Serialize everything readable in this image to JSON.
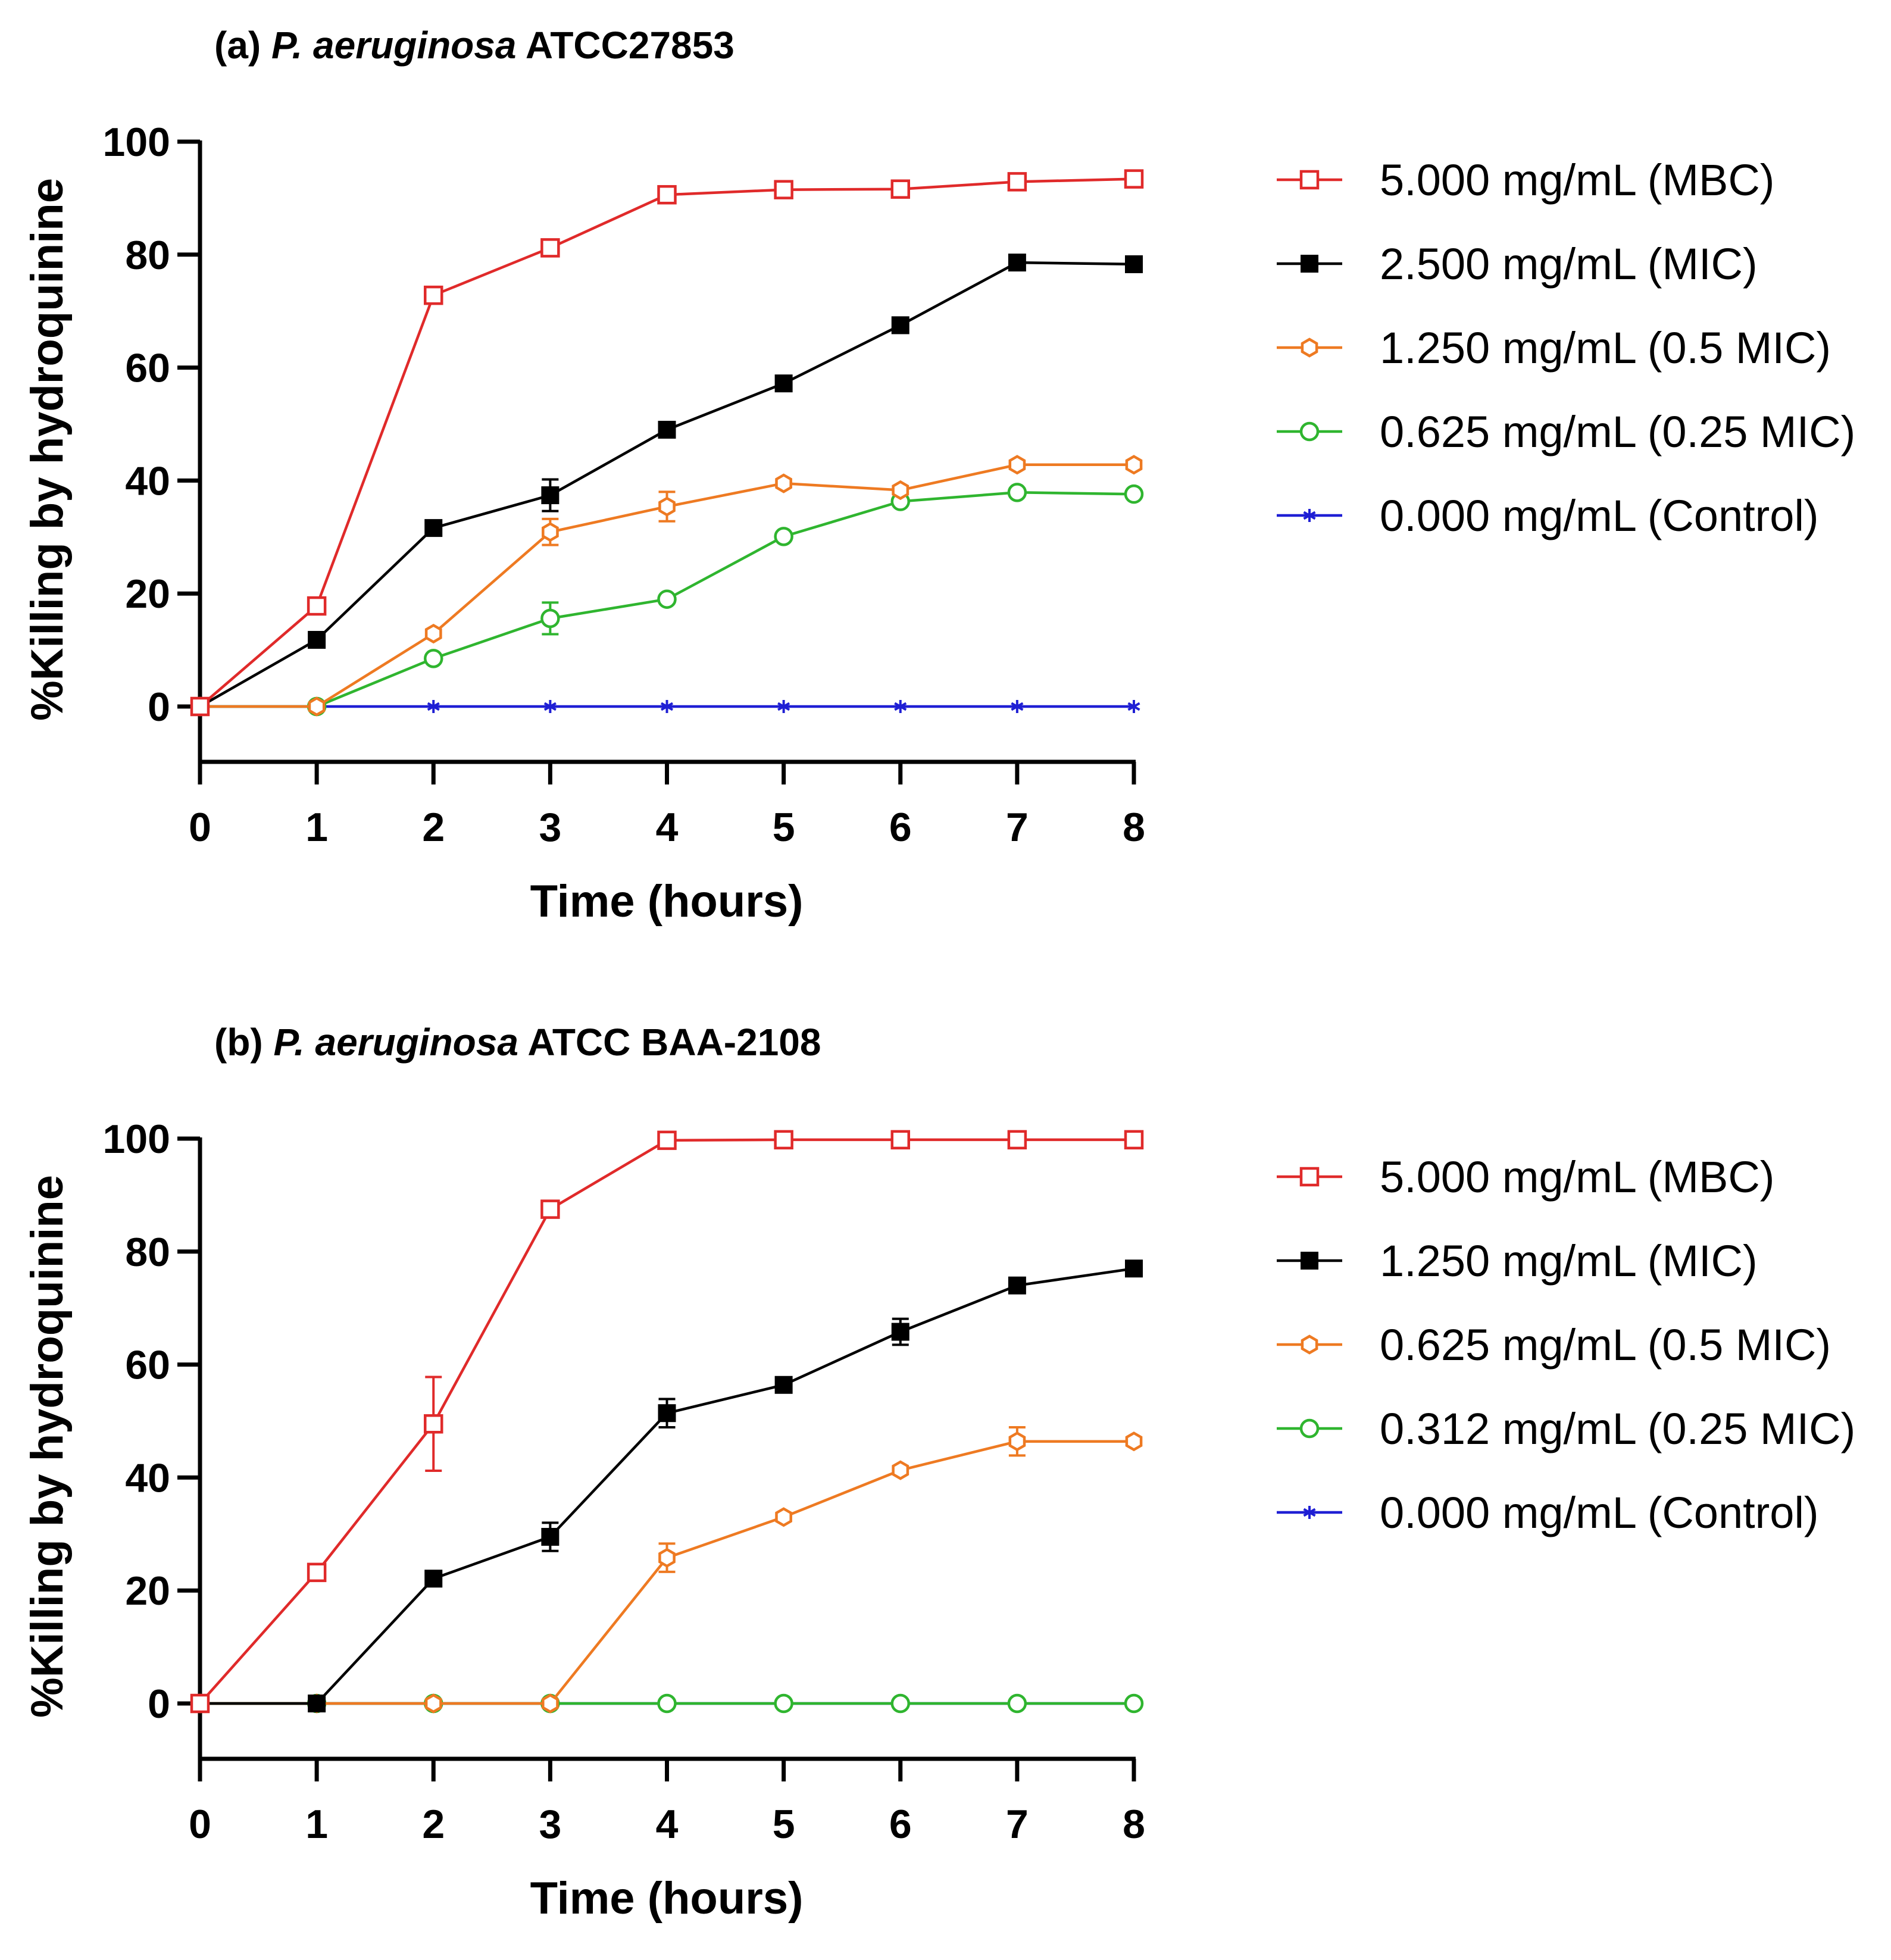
{
  "chart_data": [
    {
      "type": "line",
      "title_label": "(a)",
      "title_species": "P. aeruginosa",
      "title_strain": "ATCC27853",
      "xlabel": "Time (hours)",
      "ylabel": "%Killing by hydroquinine",
      "x": [
        0,
        1,
        2,
        3,
        4,
        5,
        6,
        7,
        8
      ],
      "xlim": [
        0,
        8
      ],
      "ylim": [
        -10,
        100
      ],
      "xticks": [
        "0",
        "1",
        "2",
        "3",
        "4",
        "5",
        "6",
        "7",
        "8"
      ],
      "yticks": [
        "0",
        "20",
        "40",
        "60",
        "80",
        "100"
      ],
      "legend_position": "right",
      "series": [
        {
          "name": "5.000 mg/mL (MBC)",
          "color": "#e02a2a",
          "marker": "square-open",
          "values": [
            0,
            17.8,
            72.8,
            81.2,
            90.6,
            91.5,
            91.6,
            92.9,
            93.4
          ],
          "errors": [
            0,
            0.8,
            0.8,
            0.8,
            0.8,
            0.8,
            0.8,
            0.8,
            0.8
          ]
        },
        {
          "name": "2.500 mg/mL (MIC)",
          "color": "#000000",
          "marker": "square-filled",
          "values": [
            0,
            11.8,
            31.6,
            37.4,
            49.0,
            57.2,
            67.5,
            78.6,
            78.3
          ],
          "errors": [
            0,
            0.8,
            0.8,
            2.8,
            0.8,
            0.8,
            0.8,
            0.8,
            0.8
          ]
        },
        {
          "name": "1.250 mg/mL (0.5 MIC)",
          "color": "#ee7a22",
          "marker": "hexagon-open",
          "values": [
            0,
            0,
            12.9,
            30.9,
            35.4,
            39.5,
            38.3,
            42.8,
            42.8
          ],
          "errors": [
            0,
            0,
            0.8,
            2.3,
            2.6,
            0.8,
            0.8,
            0.8,
            0.8
          ]
        },
        {
          "name": "0.625 mg/mL (0.25 MIC)",
          "color": "#2fb52f",
          "marker": "circle-open",
          "values": [
            0,
            0,
            8.5,
            15.6,
            19.0,
            30.1,
            36.3,
            37.9,
            37.6
          ],
          "errors": [
            0,
            0,
            0.8,
            2.8,
            0.8,
            0.8,
            0.8,
            0.8,
            0.8
          ]
        },
        {
          "name": "0.000 mg/mL (Control)",
          "color": "#1f1fd4",
          "marker": "asterisk",
          "values": [
            0,
            0,
            0,
            0,
            0,
            0,
            0,
            0,
            0
          ],
          "errors": [
            0,
            0,
            0,
            0,
            0,
            0,
            0,
            0,
            0
          ]
        }
      ]
    },
    {
      "type": "line",
      "title_label": "(b)",
      "title_species": "P. aeruginosa",
      "title_strain": "ATCC BAA-2108",
      "xlabel": "Time (hours)",
      "ylabel": "%Killing by hydroquinine",
      "x": [
        0,
        1,
        2,
        3,
        4,
        5,
        6,
        7,
        8
      ],
      "xlim": [
        0,
        8
      ],
      "ylim": [
        -10,
        100
      ],
      "xticks": [
        "0",
        "1",
        "2",
        "3",
        "4",
        "5",
        "6",
        "7",
        "8"
      ],
      "yticks": [
        "0",
        "20",
        "40",
        "60",
        "80",
        "100"
      ],
      "legend_position": "right",
      "series": [
        {
          "name": "5.000 mg/mL (MBC)",
          "color": "#e02a2a",
          "marker": "square-open",
          "values": [
            0,
            23.2,
            49.5,
            87.5,
            99.7,
            99.8,
            99.8,
            99.8,
            99.8
          ],
          "errors": [
            0,
            0.8,
            8.3,
            0.8,
            0.5,
            0.5,
            0.5,
            0.5,
            0.5
          ]
        },
        {
          "name": "1.250 mg/mL (MIC)",
          "color": "#000000",
          "marker": "square-filled",
          "values": [
            0,
            0,
            22.1,
            29.5,
            51.4,
            56.4,
            65.8,
            74.0,
            77.0
          ],
          "errors": [
            0,
            0,
            0.8,
            2.5,
            2.5,
            0.8,
            2.3,
            0.8,
            0.8
          ]
        },
        {
          "name": "0.625 mg/mL (0.5 MIC)",
          "color": "#ee7a22",
          "marker": "hexagon-open",
          "values": [
            0,
            0,
            0,
            0,
            25.8,
            33.0,
            41.3,
            46.4,
            46.4
          ],
          "errors": [
            0,
            0,
            0,
            0,
            2.5,
            0.8,
            0.8,
            2.5,
            0.8
          ]
        },
        {
          "name": "0.312 mg/mL (0.25 MIC)",
          "color": "#2fb52f",
          "marker": "circle-open",
          "values": [
            0,
            0,
            0,
            0,
            0,
            0,
            0,
            0,
            0
          ],
          "errors": [
            0,
            0,
            0,
            0,
            0,
            0,
            0,
            0,
            0
          ]
        },
        {
          "name": "0.000 mg/mL (Control)",
          "color": "#1f1fd4",
          "marker": "asterisk",
          "values": [
            0,
            0,
            0,
            0,
            0,
            0,
            0,
            0,
            0
          ],
          "errors": [
            0,
            0,
            0,
            0,
            0,
            0,
            0,
            0,
            0
          ]
        }
      ]
    }
  ]
}
